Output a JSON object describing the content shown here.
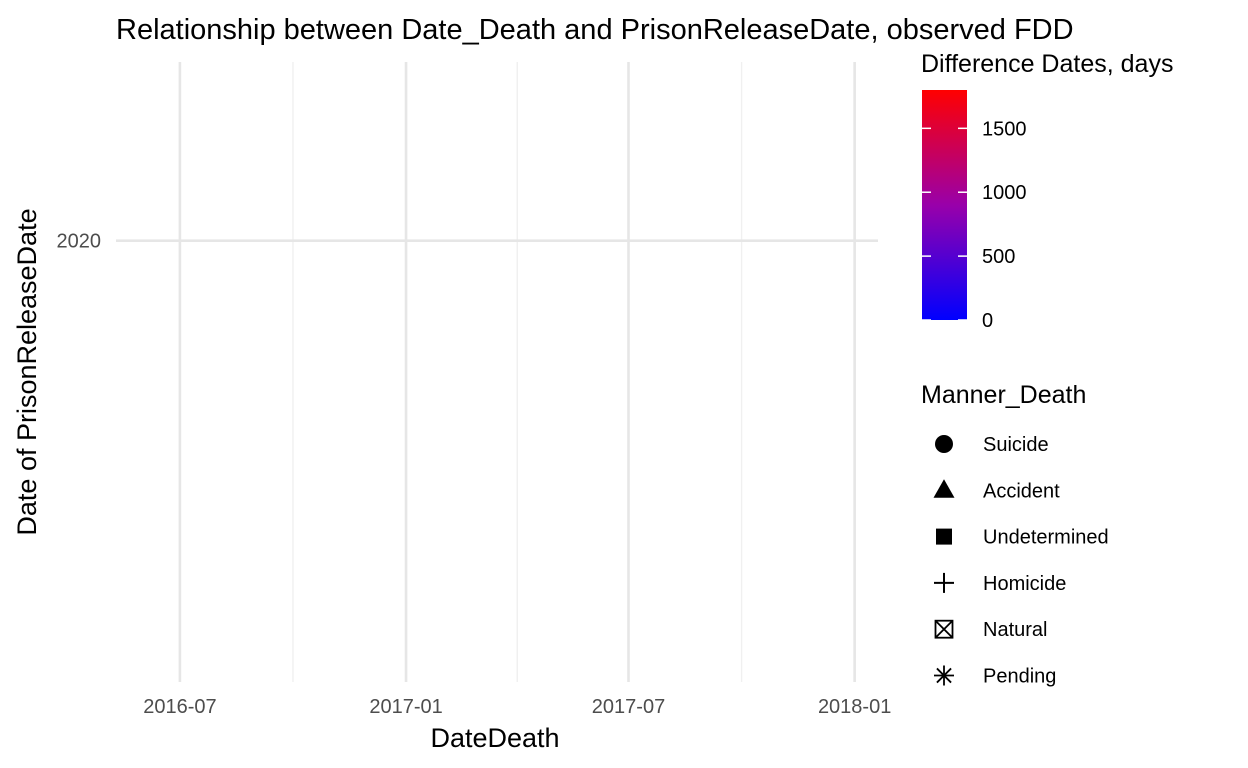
{
  "chart_data": {
    "type": "scatter",
    "title": "Relationship between Date_Death and PrisonReleaseDate, observed FDD",
    "xlabel": "DateDeath",
    "ylabel": "Date of PrisonReleaseDate",
    "x_range": [
      "2016-05-10",
      "2018-01-20"
    ],
    "x_ticks": [
      "2016-07",
      "2017-01",
      "2017-07",
      "2018-01"
    ],
    "y_range": [
      "2016-12-01",
      "2021-04-01"
    ],
    "y_ticks": [
      "2020"
    ],
    "grid": true,
    "color_legend": {
      "title": "Difference Dates, days",
      "min": 0,
      "max": 1800,
      "ticks": [
        0,
        500,
        1000,
        1500
      ],
      "low_color": "#0000ff",
      "high_color": "#ff0000"
    },
    "shape_legend": {
      "title": "Manner_Death",
      "items": [
        {
          "label": "Suicide",
          "shape": "circle"
        },
        {
          "label": "Accident",
          "shape": "triangle"
        },
        {
          "label": "Undetermined",
          "shape": "square"
        },
        {
          "label": "Homicide",
          "shape": "plus"
        },
        {
          "label": "Natural",
          "shape": "boxed-x"
        },
        {
          "label": "Pending",
          "shape": "asterisk"
        }
      ]
    },
    "points": []
  }
}
